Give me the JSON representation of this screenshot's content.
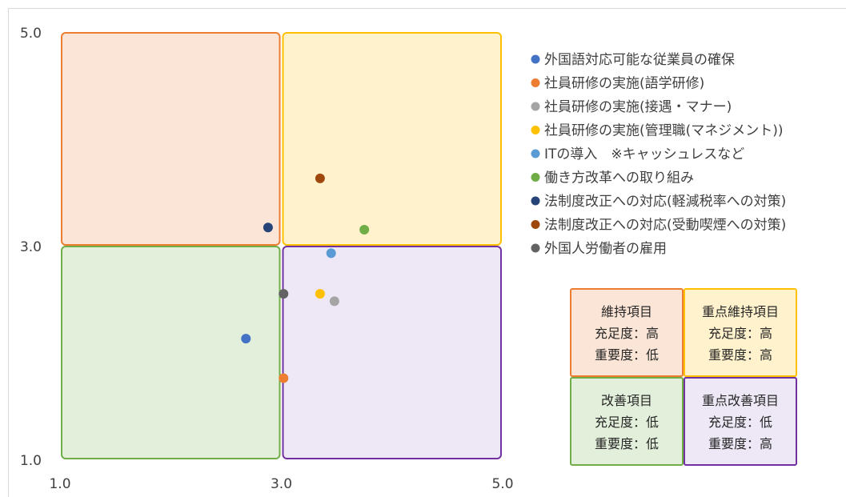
{
  "chart_data": {
    "type": "scatter",
    "title": "",
    "xlabel": "",
    "ylabel": "",
    "xlim": [
      1.0,
      5.0
    ],
    "ylim": [
      1.0,
      5.0
    ],
    "x_ticks": [
      "1.0",
      "3.0",
      "5.0"
    ],
    "y_ticks": [
      "1.0",
      "3.0",
      "5.0"
    ],
    "grid": false,
    "legend_position": "right",
    "quadrants": [
      {
        "name": "維持項目",
        "x_range": [
          1.0,
          3.0
        ],
        "y_range": [
          3.0,
          5.0
        ],
        "fill": "#fbe5d6",
        "stroke": "#ed7d31"
      },
      {
        "name": "重点維持項目",
        "x_range": [
          3.0,
          5.0
        ],
        "y_range": [
          3.0,
          5.0
        ],
        "fill": "#fff2cc",
        "stroke": "#ffc000"
      },
      {
        "name": "改善項目",
        "x_range": [
          1.0,
          3.0
        ],
        "y_range": [
          1.0,
          3.0
        ],
        "fill": "#e2efda",
        "stroke": "#70ad47"
      },
      {
        "name": "重点改善項目",
        "x_range": [
          3.0,
          5.0
        ],
        "y_range": [
          1.0,
          3.0
        ],
        "fill": "#ede7f6",
        "stroke": "#7030a0"
      }
    ],
    "series": [
      {
        "name": "外国語対応可能な従業員の確保",
        "color": "#4472c4",
        "x": 2.68,
        "y": 2.13
      },
      {
        "name": "社員研修の実施(語学研修)",
        "color": "#ed7d31",
        "x": 3.02,
        "y": 1.76
      },
      {
        "name": "社員研修の実施(接遇・マナー)",
        "color": "#a5a5a5",
        "x": 3.48,
        "y": 2.48
      },
      {
        "name": "社員研修の実施(管理職(マネジメント))",
        "color": "#ffc000",
        "x": 3.35,
        "y": 2.55
      },
      {
        "name": "ITの導入　※キャッシュレスなど",
        "color": "#5b9bd5",
        "x": 3.45,
        "y": 2.93
      },
      {
        "name": "働き方改革への取り組み",
        "color": "#70ad47",
        "x": 3.75,
        "y": 3.15
      },
      {
        "name": "法制度改正への対応(軽減税率への対策)",
        "color": "#264478",
        "x": 2.88,
        "y": 3.17
      },
      {
        "name": "法制度改正への対応(受動喫煙への対策)",
        "color": "#9e480e",
        "x": 3.35,
        "y": 3.63
      },
      {
        "name": "外国人労働者の雇用",
        "color": "#636363",
        "x": 3.02,
        "y": 2.55
      }
    ]
  },
  "quadrant_legend": [
    {
      "title": "維持項目",
      "line1": "充足度：高",
      "line2": "重要度：低",
      "fill": "#fbe5d6",
      "stroke": "#ed7d31"
    },
    {
      "title": "重点維持項目",
      "line1": "充足度：高",
      "line2": "重要度：高",
      "fill": "#fff2cc",
      "stroke": "#ffc000"
    },
    {
      "title": "改善項目",
      "line1": "充足度：低",
      "line2": "重要度：低",
      "fill": "#e2efda",
      "stroke": "#70ad47"
    },
    {
      "title": "重点改善項目",
      "line1": "充足度：低",
      "line2": "重要度：高",
      "fill": "#ede7f6",
      "stroke": "#7030a0"
    }
  ]
}
